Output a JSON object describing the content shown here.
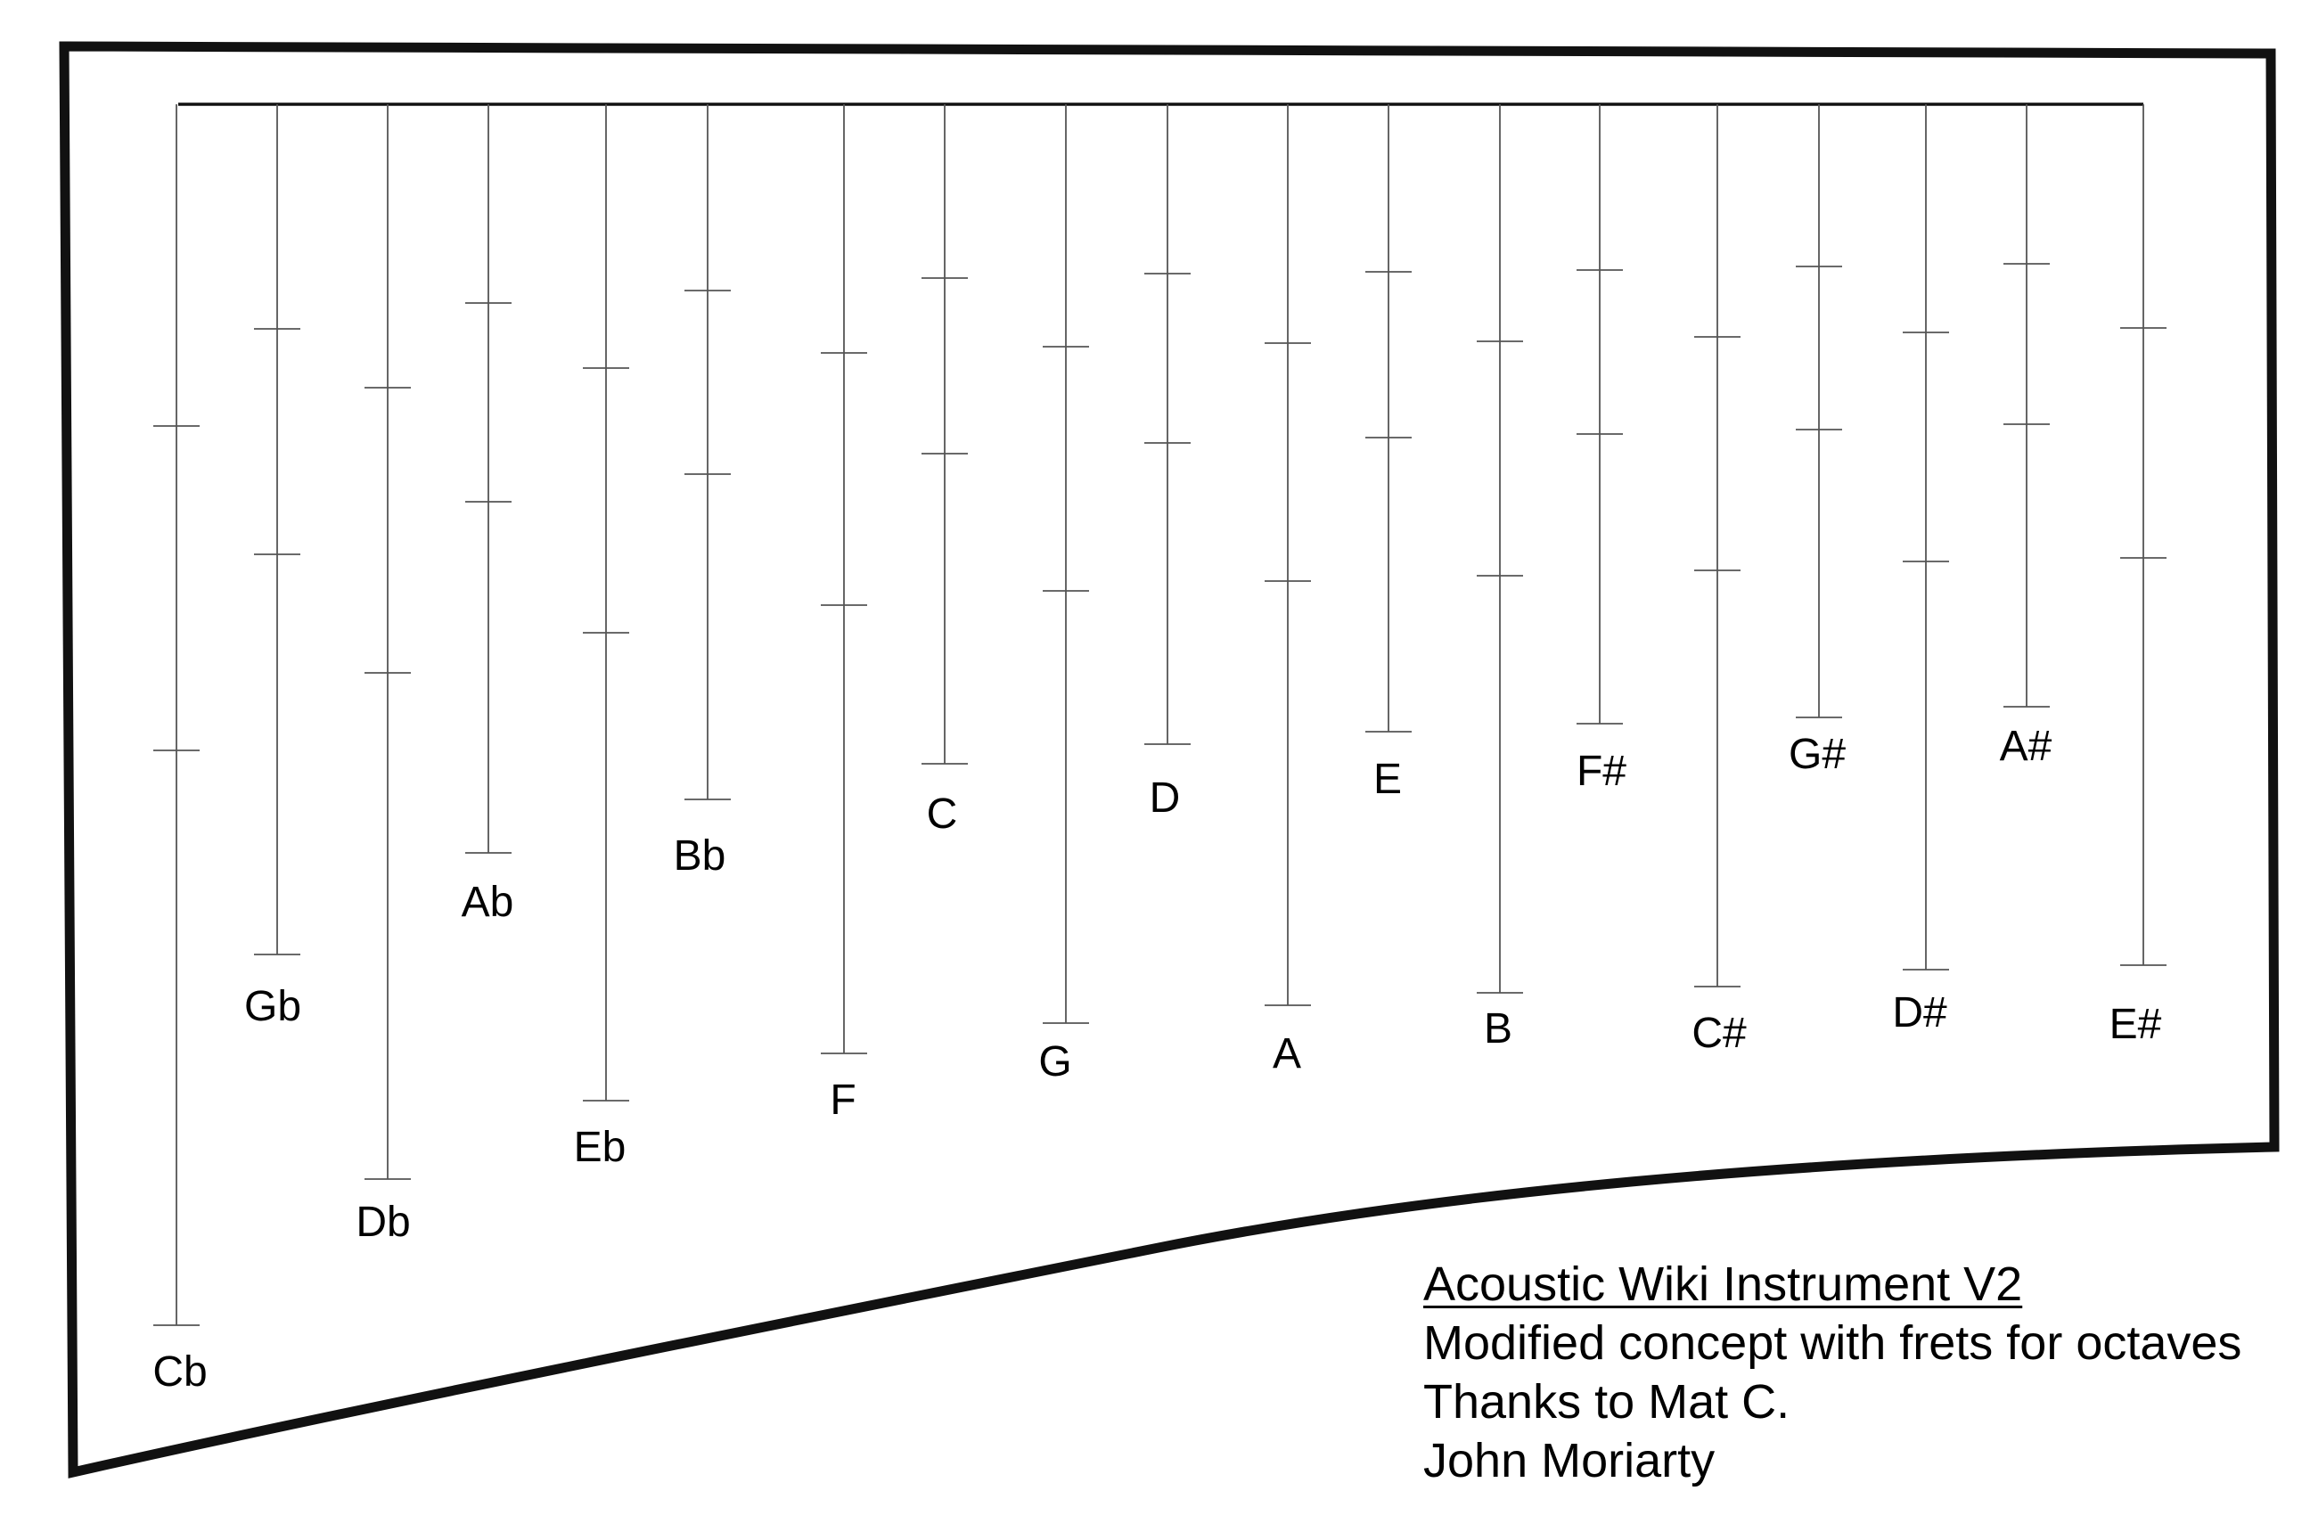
{
  "title": "Acoustic Wiki Instrument V2",
  "description_lines": [
    "Modified concept with frets for octaves",
    "Thanks to Mat C.",
    "John Moriarty"
  ],
  "strings": [
    {
      "note": "Cb",
      "frets": 2
    },
    {
      "note": "Gb",
      "frets": 2
    },
    {
      "note": "Db",
      "frets": 2
    },
    {
      "note": "Ab",
      "frets": 2
    },
    {
      "note": "Eb",
      "frets": 2
    },
    {
      "note": "Bb",
      "frets": 2
    },
    {
      "note": "F",
      "frets": 2
    },
    {
      "note": "C",
      "frets": 2
    },
    {
      "note": "G",
      "frets": 2
    },
    {
      "note": "D",
      "frets": 2
    },
    {
      "note": "A",
      "frets": 2
    },
    {
      "note": "E",
      "frets": 2
    },
    {
      "note": "B",
      "frets": 2
    },
    {
      "note": "F#",
      "frets": 2
    },
    {
      "note": "C#",
      "frets": 2
    },
    {
      "note": "G#",
      "frets": 2
    },
    {
      "note": "D#",
      "frets": 2
    },
    {
      "note": "A#",
      "frets": 2
    },
    {
      "note": "E#",
      "frets": 2
    }
  ]
}
